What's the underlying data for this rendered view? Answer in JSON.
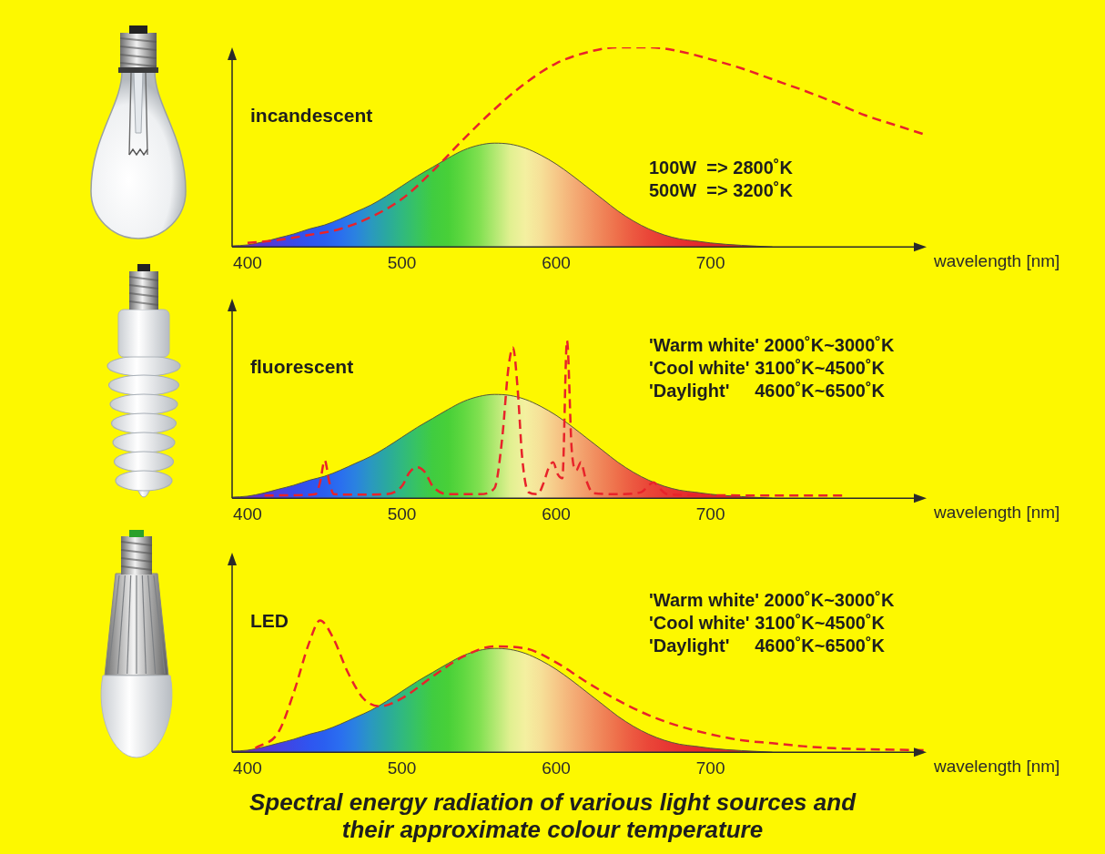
{
  "chart_data": [
    {
      "type": "line",
      "title": "incandescent",
      "annotations": [
        "100W  => 2800˚K",
        "500W  => 3200˚K"
      ],
      "x_label": "wavelength [nm]",
      "xlim": [
        390,
        840
      ],
      "xticks": [
        400,
        500,
        600,
        700
      ],
      "ylim": [
        0,
        100
      ],
      "tick_labels": "x",
      "grid": false,
      "series": [
        {
          "type": "area",
          "color": "#55553a",
          "x": [
            390,
            400,
            410,
            420,
            430,
            440,
            450,
            460,
            470,
            480,
            490,
            500,
            510,
            520,
            530,
            540,
            550,
            560,
            570,
            580,
            590,
            600,
            610,
            620,
            630,
            640,
            650,
            660,
            670,
            680,
            690,
            700,
            710,
            720,
            730,
            740
          ],
          "values": [
            0.5,
            1,
            2.5,
            4.5,
            6.5,
            9,
            11,
            14,
            17.5,
            21,
            25.5,
            30.5,
            35.5,
            40,
            44.5,
            48.5,
            51,
            52,
            51.5,
            49.5,
            46,
            41.5,
            36,
            30,
            24,
            18,
            13,
            9,
            6,
            4,
            3,
            2,
            1.3,
            0.8,
            0.4,
            0
          ],
          "colors": [
            "#6a2ca8",
            "#6b30c0",
            "#5a35d0",
            "#4a40e0",
            "#3a4ae8",
            "#2f55f0",
            "#2a5ff0",
            "#2a6ef0",
            "#2a82e0",
            "#2a98c0",
            "#2aa8a0",
            "#30b880",
            "#38c460",
            "#40cc40",
            "#48d038",
            "#60d840",
            "#80e050",
            "#b0e870",
            "#e0f090",
            "#f4f0a0",
            "#f6e098",
            "#f6c888",
            "#f4b078",
            "#f29a68",
            "#f08458",
            "#ee6e4a",
            "#ec5840",
            "#ea4638",
            "#e83a34",
            "#e63030",
            "#e42a2c",
            "#e02828",
            "#dc2828",
            "#d82828",
            "#d42828",
            "#d02828"
          ]
        },
        {
          "color": "#e8232a",
          "line_style": "dashed",
          "x": [
            400,
            420,
            440,
            460,
            480,
            500,
            520,
            540,
            560,
            580,
            600,
            620,
            640,
            660,
            680,
            700,
            720,
            740,
            760,
            780,
            800,
            820,
            840
          ],
          "values": [
            2,
            3.5,
            6,
            9,
            15,
            24,
            38,
            54,
            69,
            82,
            92,
            97.5,
            100,
            100,
            98,
            94,
            89.5,
            84,
            78.5,
            72.5,
            66,
            61,
            56
          ]
        }
      ]
    },
    {
      "type": "line",
      "title": "fluorescent",
      "annotations": [
        "'Warm white' 2000˚K~3000˚K",
        "'Cool white' 3100˚K~4500˚K",
        "'Daylight'     4600˚K~6500˚K"
      ],
      "x_label": "wavelength [nm]",
      "xlim": [
        390,
        840
      ],
      "xticks": [
        400,
        500,
        600,
        700
      ],
      "ylim": [
        0,
        100
      ],
      "tick_labels": "x",
      "grid": false,
      "series": [
        {
          "type": "area",
          "color": "#55553a",
          "x": [
            390,
            400,
            410,
            420,
            430,
            440,
            450,
            460,
            470,
            480,
            490,
            500,
            510,
            520,
            530,
            540,
            550,
            560,
            570,
            580,
            590,
            600,
            610,
            620,
            630,
            640,
            650,
            660,
            670,
            680,
            690,
            700,
            710,
            720,
            730,
            740
          ],
          "values": [
            0.5,
            1,
            2.5,
            4.5,
            6.5,
            9,
            11,
            14,
            17.5,
            21,
            25.5,
            30.5,
            35.5,
            40,
            44.5,
            48.5,
            51,
            52,
            51.5,
            49.5,
            46,
            41.5,
            36,
            30,
            24,
            18,
            13,
            9,
            6,
            4,
            3,
            2,
            1.3,
            0.8,
            0.4,
            0
          ],
          "colors": [
            "#6a2ca8",
            "#6b30c0",
            "#5a35d0",
            "#4a40e0",
            "#3a4ae8",
            "#2f55f0",
            "#2a5ff0",
            "#2a6ef0",
            "#2a82e0",
            "#2a98c0",
            "#2aa8a0",
            "#30b880",
            "#38c460",
            "#40cc40",
            "#48d038",
            "#60d840",
            "#80e050",
            "#b0e870",
            "#e0f090",
            "#f4f0a0",
            "#f6e098",
            "#f6c888",
            "#f4b078",
            "#f29a68",
            "#f08458",
            "#ee6e4a",
            "#ec5840",
            "#ea4638",
            "#e83a34",
            "#e63030",
            "#e42a2c",
            "#e02828",
            "#dc2828",
            "#d82828",
            "#d42828",
            "#d02828"
          ]
        },
        {
          "color": "#e8232a",
          "line_style": "dashed",
          "x": [
            411,
            430,
            444,
            447,
            450,
            453,
            456,
            470,
            490,
            500,
            505,
            510,
            515,
            520,
            530,
            550,
            560,
            565,
            569,
            572,
            575,
            578,
            582,
            588,
            592,
            595,
            598,
            601,
            604,
            607,
            610,
            613,
            616,
            619,
            624,
            640,
            655,
            660,
            663,
            667,
            672,
            700,
            740,
            787
          ],
          "values": [
            1.3,
            1.5,
            2,
            8,
            19,
            8,
            2,
            1.8,
            2,
            6,
            13,
            15.5,
            13,
            6,
            2,
            2,
            5,
            30,
            65,
            75.5,
            55,
            20,
            3,
            2,
            8,
            15,
            18,
            12,
            10,
            79,
            25,
            14,
            18,
            10,
            2.5,
            2,
            3,
            6.5,
            8,
            5,
            2,
            1.5,
            1.3,
            1.3
          ]
        }
      ]
    },
    {
      "type": "line",
      "title": "LED",
      "annotations": [
        "'Warm white' 2000˚K~3000˚K",
        "'Cool white' 3100˚K~4500˚K",
        "'Daylight'     4600˚K~6500˚K"
      ],
      "x_label": "wavelength [nm]",
      "xlim": [
        390,
        840
      ],
      "xticks": [
        400,
        500,
        600,
        700
      ],
      "ylim": [
        0,
        100
      ],
      "tick_labels": "x",
      "grid": false,
      "series": [
        {
          "type": "area",
          "color": "#55553a",
          "x": [
            390,
            400,
            410,
            420,
            430,
            440,
            450,
            460,
            470,
            480,
            490,
            500,
            510,
            520,
            530,
            540,
            550,
            560,
            570,
            580,
            590,
            600,
            610,
            620,
            630,
            640,
            650,
            660,
            670,
            680,
            690,
            700,
            710,
            720,
            730,
            740
          ],
          "values": [
            0.5,
            1,
            2.5,
            4.5,
            6.5,
            9,
            11,
            14,
            17.5,
            21,
            25.5,
            30.5,
            35.5,
            40,
            44.5,
            48.5,
            51,
            52,
            51.5,
            49.5,
            46,
            41.5,
            36,
            30,
            24,
            18,
            13,
            9,
            6,
            4,
            3,
            2,
            1.3,
            0.8,
            0.4,
            0
          ],
          "colors": [
            "#6a2ca8",
            "#6b30c0",
            "#5a35d0",
            "#4a40e0",
            "#3a4ae8",
            "#2f55f0",
            "#2a5ff0",
            "#2a6ef0",
            "#2a82e0",
            "#2a98c0",
            "#2aa8a0",
            "#30b880",
            "#38c460",
            "#40cc40",
            "#48d038",
            "#60d840",
            "#80e050",
            "#b0e870",
            "#e0f090",
            "#f4f0a0",
            "#f6e098",
            "#f6c888",
            "#f4b078",
            "#f29a68",
            "#f08458",
            "#ee6e4a",
            "#ec5840",
            "#ea4638",
            "#e83a34",
            "#e63030",
            "#e42a2c",
            "#e02828",
            "#dc2828",
            "#d82828",
            "#d42828",
            "#d02828"
          ]
        },
        {
          "color": "#e8232a",
          "line_style": "dashed",
          "x": [
            405,
            420,
            430,
            440,
            447,
            455,
            465,
            475,
            486,
            500,
            520,
            540,
            560,
            580,
            600,
            620,
            640,
            660,
            680,
            700,
            720,
            740,
            760,
            780,
            800,
            840
          ],
          "values": [
            2,
            10,
            30,
            55,
            66,
            58,
            40,
            27,
            23,
            27,
            38,
            48,
            53,
            52,
            45,
            35,
            26,
            18.5,
            13,
            9,
            6,
            4.5,
            3,
            2,
            1.5,
            1
          ]
        }
      ]
    }
  ],
  "caption": [
    "Spectral energy radiation of various light sources and",
    "their approximate colour temperature"
  ]
}
